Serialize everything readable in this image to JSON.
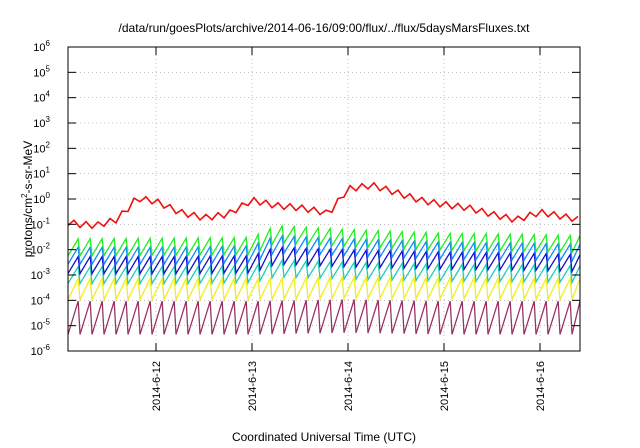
{
  "chart_data": {
    "type": "line",
    "title": "/data/run/goesPlots/archive/2014-06-16/09:00/flux/../flux/5daysMarsFluxes.txt",
    "xlabel": "Coordinated Universal Time (UTC)",
    "ylabel": "protons/cm2-s-sr-MeV",
    "y_scale": "log",
    "ylim": [
      1e-06,
      1000000.0
    ],
    "xlim": [
      "2014-06-11 02:00",
      "2014-06-16 10:00"
    ],
    "x_ticks": [
      "2014-6-12",
      "2014-6-13",
      "2014-6-14",
      "2014-6-15",
      "2014-6-16"
    ],
    "y_ticks": [
      {
        "value": 1e-06,
        "base": "10",
        "exp": "-6"
      },
      {
        "value": 1e-05,
        "base": "10",
        "exp": "-5"
      },
      {
        "value": 0.0001,
        "base": "10",
        "exp": "-4"
      },
      {
        "value": 0.001,
        "base": "10",
        "exp": "-3"
      },
      {
        "value": 0.01,
        "base": "10",
        "exp": "-2"
      },
      {
        "value": 0.1,
        "base": "10",
        "exp": "-1"
      },
      {
        "value": 1,
        "base": "10",
        "exp": "0"
      },
      {
        "value": 10,
        "base": "10",
        "exp": "1"
      },
      {
        "value": 100,
        "base": "10",
        "exp": "2"
      },
      {
        "value": 1000,
        "base": "10",
        "exp": "3"
      },
      {
        "value": 10000,
        "base": "10",
        "exp": "4"
      },
      {
        "value": 100000,
        "base": "10",
        "exp": "5"
      },
      {
        "value": 1000000,
        "base": "10",
        "exp": "6"
      }
    ],
    "grid": true,
    "series": [
      {
        "color": "#ee1111",
        "x": [
          "2014-06-11 02:00",
          "2014-06-11 05:00",
          "2014-06-11 09:00",
          "2014-06-11 14:00",
          "2014-06-11 18:00",
          "2014-06-11 19:00",
          "2014-06-12 00:00",
          "2014-06-12 06:00",
          "2014-06-12 12:00",
          "2014-06-12 18:00",
          "2014-06-13 00:00",
          "2014-06-13 06:00",
          "2014-06-13 12:00",
          "2014-06-13 18:00",
          "2014-06-13 19:00",
          "2014-06-14 00:00",
          "2014-06-14 06:00",
          "2014-06-14 12:00",
          "2014-06-14 18:00",
          "2014-06-15 00:00",
          "2014-06-15 06:00",
          "2014-06-15 12:00",
          "2014-06-15 18:00",
          "2014-06-16 00:00",
          "2014-06-16 06:00",
          "2014-06-16 10:00"
        ],
        "values": [
          0.12,
          0.1,
          0.09,
          0.15,
          0.6,
          1.1,
          0.8,
          0.3,
          0.18,
          0.25,
          0.9,
          0.55,
          0.45,
          0.3,
          0.25,
          2.5,
          3.5,
          1.8,
          0.9,
          0.6,
          0.45,
          0.25,
          0.15,
          0.3,
          0.2,
          0.15
        ]
      },
      {
        "color": "#22ee22",
        "x": [
          "2014-06-11 02:00",
          "2014-06-12 06:00",
          "2014-06-13 00:00",
          "2014-06-13 06:00",
          "2014-06-14 00:00",
          "2014-06-15 00:00",
          "2014-06-16 00:00",
          "2014-06-16 10:00"
        ],
        "values": [
          0.015,
          0.016,
          0.017,
          0.05,
          0.035,
          0.025,
          0.022,
          0.02
        ]
      },
      {
        "color": "#1188ff",
        "x": [
          "2014-06-11 02:00",
          "2014-06-12 06:00",
          "2014-06-13 00:00",
          "2014-06-13 06:00",
          "2014-06-14 00:00",
          "2014-06-15 00:00",
          "2014-06-16 00:00",
          "2014-06-16 10:00"
        ],
        "values": [
          0.007,
          0.007,
          0.008,
          0.02,
          0.015,
          0.011,
          0.01,
          0.009
        ]
      },
      {
        "color": "#1111cc",
        "x": [
          "2014-06-11 02:00",
          "2014-06-12 06:00",
          "2014-06-13 00:00",
          "2014-06-13 06:00",
          "2014-06-14 00:00",
          "2014-06-15 00:00",
          "2014-06-16 00:00",
          "2014-06-16 10:00"
        ],
        "values": [
          0.003,
          0.003,
          0.0032,
          0.007,
          0.0055,
          0.0045,
          0.004,
          0.0035
        ]
      },
      {
        "color": "#22ccbb",
        "x": [
          "2014-06-11 02:00",
          "2014-06-12 06:00",
          "2014-06-13 00:00",
          "2014-06-13 06:00",
          "2014-06-14 00:00",
          "2014-06-15 00:00",
          "2014-06-16 00:00",
          "2014-06-16 10:00"
        ],
        "values": [
          0.0012,
          0.0012,
          0.0013,
          0.0022,
          0.0018,
          0.0015,
          0.0014,
          0.0013
        ]
      },
      {
        "color": "#eeee22",
        "x": [
          "2014-06-11 02:00",
          "2014-06-12 06:00",
          "2014-06-13 00:00",
          "2014-06-14 00:00",
          "2014-06-15 00:00",
          "2014-06-16 00:00",
          "2014-06-16 10:00"
        ],
        "values": [
          0.00035,
          0.00035,
          0.00035,
          0.0004,
          0.00038,
          0.00036,
          0.00035
        ]
      },
      {
        "color": "#993366",
        "x": [
          "2014-06-11 02:00",
          "2014-06-12 06:00",
          "2014-06-13 00:00",
          "2014-06-14 00:00",
          "2014-06-15 00:00",
          "2014-06-16 00:00",
          "2014-06-16 10:00"
        ],
        "values": [
          3e-05,
          3e-05,
          3e-05,
          3.5e-05,
          3e-05,
          3e-05,
          3e-05
        ]
      }
    ]
  }
}
